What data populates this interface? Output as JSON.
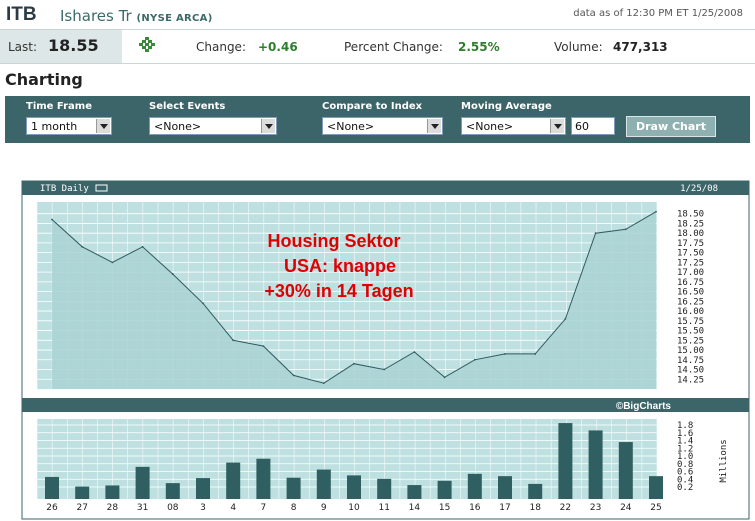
{
  "header": {
    "symbol": "ITB",
    "company_name": "Ishares Tr",
    "exchange": "(NYSE ARCA)",
    "data_as_of": "data as of 12:30 PM ET 1/25/2008"
  },
  "quote": {
    "last_label": "Last:",
    "last_value": "18.55",
    "change_label": "Change:",
    "change_value": "+0.46",
    "pct_label": "Percent Change:",
    "pct_value": "2.55%",
    "volume_label": "Volume:",
    "volume_value": "477,313",
    "up_icon": "green-up-arrow-icon",
    "positive_color": "#2e7d2e"
  },
  "section_title": "Charting",
  "controls": {
    "time_frame_label": "Time Frame",
    "time_frame_value": "1 month",
    "events_label": "Select Events",
    "events_value": "<None>",
    "compare_label": "Compare to Index",
    "compare_value": "<None>",
    "ma_label": "Moving Average",
    "ma_value": "<None>",
    "ma_period": "60",
    "draw_button": "Draw Chart"
  },
  "chart_data": {
    "type": "area",
    "title": "ITB Daily",
    "date": "1/25/08",
    "credit": "©BigCharts",
    "annotation": [
      "Housing Sektor",
      "USA: knappe",
      "+30% in 14 Tagen"
    ],
    "annotation_color": "#e00000",
    "categories": [
      "26",
      "27",
      "28",
      "31",
      "08",
      "3",
      "4",
      "7",
      "8",
      "9",
      "10",
      "11",
      "14",
      "15",
      "16",
      "17",
      "18",
      "22",
      "23",
      "24",
      "25"
    ],
    "price": {
      "values": [
        18.35,
        17.65,
        17.25,
        17.65,
        16.95,
        16.2,
        15.25,
        15.1,
        14.35,
        14.15,
        14.65,
        14.5,
        14.95,
        14.3,
        14.75,
        14.9,
        14.9,
        15.8,
        18.0,
        18.1,
        18.55
      ],
      "ylim": [
        14.0,
        18.8
      ],
      "yticks": [
        "18.50",
        "18.25",
        "18.00",
        "17.75",
        "17.50",
        "17.25",
        "17.00",
        "16.75",
        "16.50",
        "16.25",
        "16.00",
        "15.75",
        "15.50",
        "15.25",
        "15.00",
        "14.75",
        "14.50",
        "14.25"
      ],
      "fill_color": "#a9d2d4",
      "line_color": "#2f5a5e"
    },
    "volume": {
      "values": [
        0.46,
        0.21,
        0.24,
        0.72,
        0.3,
        0.43,
        0.83,
        0.93,
        0.44,
        0.65,
        0.5,
        0.41,
        0.25,
        0.36,
        0.54,
        0.48,
        0.28,
        1.85,
        1.66,
        1.36,
        0.48
      ],
      "ylim": [
        0,
        2.0
      ],
      "yticks": [
        "1.8",
        "1.6",
        "1.4",
        "1.2",
        "1.0",
        "0.8",
        "0.6",
        "0.4",
        "0.2"
      ],
      "unit_label": "Millions",
      "bar_color": "#2f5f60"
    },
    "grid": true,
    "panel_bg": "#bfe0e1",
    "bar_color": "#3b6568"
  }
}
